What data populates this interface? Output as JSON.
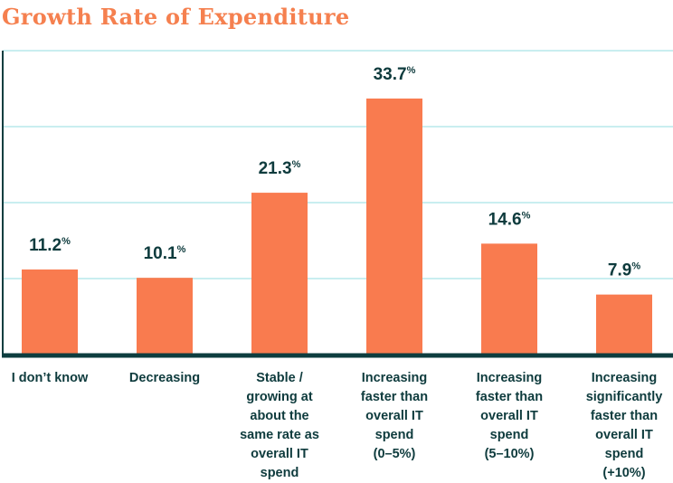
{
  "chart_data": {
    "type": "bar",
    "title": "Growth Rate of Expenditure",
    "categories": [
      "I don’t know",
      "Decreasing",
      "Stable / growing at about the same rate as overall IT spend",
      "Increasing faster than overall IT spend (0–5%)",
      "Increasing faster than overall IT spend (5–10%)",
      "Increasing significantly faster than overall IT spend (+10%)"
    ],
    "category_lines": [
      [
        "I don’t know"
      ],
      [
        "Decreasing"
      ],
      [
        "Stable /",
        "growing at",
        "about the",
        "same rate as",
        "overall IT",
        "spend"
      ],
      [
        "Increasing",
        "faster than",
        "overall IT",
        "spend",
        "(0–5%)"
      ],
      [
        "Increasing",
        "faster than",
        "overall IT",
        "spend",
        "(5–10%)"
      ],
      [
        "Increasing",
        "significantly",
        "faster than",
        "overall IT",
        "spend",
        "(+10%)"
      ]
    ],
    "values": [
      11.2,
      10.1,
      21.3,
      33.7,
      14.6,
      7.9
    ],
    "value_labels": [
      "11.2",
      "10.1",
      "21.3",
      "33.7",
      "14.6",
      "7.9"
    ],
    "value_suffix": "%",
    "ylim": [
      0,
      40
    ],
    "grid": true,
    "colors": {
      "bar": "#f97b4f",
      "title": "#f5804f",
      "text": "#0e3b3d",
      "axis": "#0d3d3f",
      "grid": "#c9eef0"
    }
  }
}
